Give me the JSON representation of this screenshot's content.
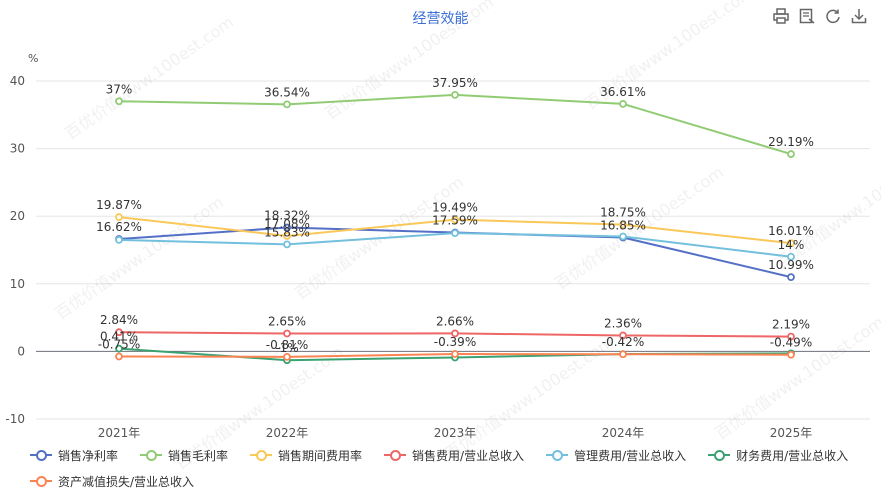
{
  "header": {
    "title": "经营效能",
    "tools": [
      "print-icon",
      "data-view-icon",
      "refresh-icon",
      "download-icon"
    ]
  },
  "watermark": "百优价值www.100est.com",
  "chart_data": {
    "type": "line",
    "title": "经营效能",
    "ylabel": "%",
    "xlabel": "",
    "categories": [
      "2021年",
      "2022年",
      "2023年",
      "2024年",
      "2025年"
    ],
    "ylim": [
      -10,
      40
    ],
    "yticks": [
      -10,
      0,
      10,
      20,
      30,
      40
    ],
    "grid": true,
    "legend_position": "bottom",
    "series": [
      {
        "name": "销售净利率",
        "color": "#5470c6",
        "values": [
          16.62,
          18.32,
          17.59,
          16.85,
          10.99
        ],
        "labels": [
          "16.62%",
          "18.32%",
          "17.59%",
          "16.85%",
          "10.99%"
        ]
      },
      {
        "name": "销售毛利率",
        "color": "#91cc75",
        "values": [
          37,
          36.54,
          37.95,
          36.61,
          29.19
        ],
        "labels": [
          "37%",
          "36.54%",
          "37.95%",
          "36.61%",
          "29.19%"
        ]
      },
      {
        "name": "销售期间费用率",
        "color": "#fac858",
        "values": [
          19.87,
          17.08,
          19.49,
          18.75,
          16.01
        ],
        "labels": [
          "19.87%",
          "17.08%",
          "19.49%",
          "18.75%",
          "16.01%"
        ]
      },
      {
        "name": "销售费用/营业总收入",
        "color": "#ee6666",
        "values": [
          2.84,
          2.65,
          2.66,
          2.36,
          2.19
        ],
        "labels": [
          "2.84%",
          "2.65%",
          "2.66%",
          "2.36%",
          "2.19%"
        ]
      },
      {
        "name": "管理费用/营业总收入",
        "color": "#73c0de",
        "values": [
          16.5,
          15.83,
          17.5,
          17.0,
          14
        ],
        "labels": [
          "",
          "15.83%",
          "",
          "",
          "14%"
        ]
      },
      {
        "name": "财务费用/营业总收入",
        "color": "#3ba272",
        "values": [
          0.41,
          -1.3,
          -0.9,
          -0.4,
          -0.3
        ],
        "labels": [
          "0.41%",
          "-1%",
          "",
          "",
          ""
        ]
      },
      {
        "name": "资产减值损失/营业总收入",
        "color": "#fc8452",
        "values": [
          -0.75,
          -0.81,
          -0.39,
          -0.42,
          -0.49
        ],
        "labels": [
          "-0.75%",
          "-0.81%",
          "-0.39%",
          "-0.42%",
          "-0.49%"
        ]
      }
    ]
  }
}
